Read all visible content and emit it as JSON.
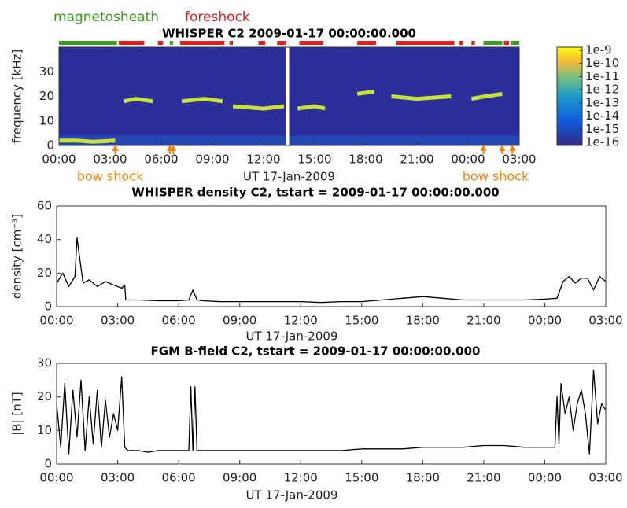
{
  "chart_data": [
    {
      "type": "spectrogram",
      "title": "WHISPER C2 2009-01-17 00:00:00.000",
      "ylabel": "frequency [kHz]",
      "xlabel": "UT 17-Jan-2009",
      "xlim": [
        0,
        27
      ],
      "xticks": [
        {
          "value": 0,
          "label": "00:00"
        },
        {
          "value": 3,
          "label": "03:00"
        },
        {
          "value": 6,
          "label": "06:00"
        },
        {
          "value": 9,
          "label": "09:00"
        },
        {
          "value": 12,
          "label": "12:00"
        },
        {
          "value": 15,
          "label": "15:00"
        },
        {
          "value": 18,
          "label": "18:00"
        },
        {
          "value": 21,
          "label": "21:00"
        },
        {
          "value": 24,
          "label": "00:00"
        },
        {
          "value": 27,
          "label": "03:00"
        }
      ],
      "ylim": [
        0,
        40
      ],
      "yticks": [
        0,
        10,
        20,
        30
      ],
      "clim": [
        1e-16,
        1e-09
      ],
      "cticks": [
        1e-09,
        1e-10,
        1e-11,
        1e-12,
        1e-13,
        1e-14,
        1e-15,
        1e-16
      ],
      "gaps": [
        [
          13.3,
          13.5
        ]
      ],
      "x": [
        0,
        1,
        2,
        3.3,
        3.5,
        3.8,
        4.5,
        5.5,
        5.8,
        7.2,
        8.5,
        9.6,
        10.0,
        10.2,
        12,
        13.2,
        13.6,
        14,
        15,
        15.6,
        16,
        17.5,
        18.5,
        19,
        19.5,
        21,
        23,
        23.5,
        24.2,
        25,
        26
      ],
      "series": [
        {
          "color": "#c8e03a",
          "values": [
            2,
            2,
            1.5,
            2,
            null,
            18,
            19,
            18,
            null,
            18,
            19,
            18,
            null,
            16,
            15,
            16,
            null,
            15,
            16,
            15,
            null,
            21,
            22,
            null,
            20,
            19,
            20,
            null,
            19,
            20,
            21
          ]
        }
      ],
      "intervals": [
        {
          "name": "magnetosheath",
          "color": "#3a9b1e",
          "spans": [
            [
              0,
              3.4
            ],
            [
              6.5,
              6.7
            ],
            [
              24.9,
              26.0
            ],
            [
              26.5,
              27
            ]
          ]
        },
        {
          "name": "foreshock",
          "color": "#e01c1c",
          "spans": [
            [
              3.5,
              5.0
            ],
            [
              5.8,
              6.1
            ],
            [
              7.1,
              9.7
            ],
            [
              10,
              10.2
            ],
            [
              11.7,
              12.1
            ],
            [
              12.8,
              13.3
            ],
            [
              14.1,
              15.5
            ],
            [
              17.5,
              18.6
            ],
            [
              19.8,
              23.2
            ],
            [
              23.5,
              23.7
            ],
            [
              24.2,
              24.4
            ],
            [
              26.1,
              26.4
            ]
          ]
        }
      ],
      "bow_shock": {
        "label": "bow shock",
        "color": "#f5820f",
        "times": [
          3.3,
          6.5,
          6.7,
          24.9,
          26.0,
          26.6
        ]
      }
    },
    {
      "type": "line",
      "title": "WHISPER density C2, tstart = 2009-01-17 00:00:00.000",
      "ylabel": "density [cm⁻³]",
      "xlabel": "UT 17-Jan-2009",
      "xlim": [
        0,
        27
      ],
      "xticks": [
        {
          "value": 0,
          "label": "00:00"
        },
        {
          "value": 3,
          "label": "03:00"
        },
        {
          "value": 6,
          "label": "06:00"
        },
        {
          "value": 9,
          "label": "09:00"
        },
        {
          "value": 12,
          "label": "12:00"
        },
        {
          "value": 15,
          "label": "15:00"
        },
        {
          "value": 18,
          "label": "18:00"
        },
        {
          "value": 21,
          "label": "21:00"
        },
        {
          "value": 24,
          "label": "00:00"
        },
        {
          "value": 27,
          "label": "03:00"
        }
      ],
      "ylim": [
        0,
        60
      ],
      "yticks": [
        0,
        20,
        40,
        60
      ],
      "x": [
        0,
        0.3,
        0.6,
        0.9,
        1.0,
        1.3,
        1.6,
        2.0,
        2.4,
        2.8,
        3.2,
        3.35,
        3.4,
        4,
        5,
        6,
        6.5,
        6.7,
        6.9,
        7.2,
        8,
        9,
        10,
        11,
        12,
        13,
        14,
        15,
        16,
        17,
        18,
        19,
        20,
        21,
        22,
        23,
        24,
        24.6,
        24.9,
        25.2,
        25.5,
        25.8,
        26.1,
        26.4,
        26.7,
        27
      ],
      "series": [
        {
          "color": "#000000",
          "values": [
            14,
            20,
            12,
            18,
            41,
            14,
            16,
            12,
            15,
            13,
            11,
            13,
            4,
            4,
            3.5,
            3.5,
            4,
            10,
            4,
            3.5,
            3,
            3,
            3,
            3,
            3,
            2.5,
            3,
            3,
            4,
            5,
            6,
            5,
            4,
            4,
            4,
            4,
            4.5,
            5,
            15,
            18,
            14,
            17,
            17,
            10,
            18,
            15
          ]
        }
      ]
    },
    {
      "type": "line",
      "title": "FGM B-field C2, tstart = 2009-01-17 00:00:00.000",
      "ylabel": "|B| [nT]",
      "xlabel": "UT 17-Jan-2009",
      "xlim": [
        0,
        27
      ],
      "xticks": [
        {
          "value": 0,
          "label": "00:00"
        },
        {
          "value": 3,
          "label": "03:00"
        },
        {
          "value": 6,
          "label": "06:00"
        },
        {
          "value": 9,
          "label": "09:00"
        },
        {
          "value": 12,
          "label": "12:00"
        },
        {
          "value": 15,
          "label": "15:00"
        },
        {
          "value": 18,
          "label": "18:00"
        },
        {
          "value": 21,
          "label": "21:00"
        },
        {
          "value": 24,
          "label": "00:00"
        },
        {
          "value": 27,
          "label": "03:00"
        }
      ],
      "ylim": [
        0,
        30
      ],
      "yticks": [
        0,
        10,
        20,
        30
      ],
      "x": [
        0,
        0.2,
        0.4,
        0.6,
        0.8,
        1.0,
        1.2,
        1.4,
        1.6,
        1.8,
        2.0,
        2.2,
        2.4,
        2.6,
        2.8,
        3.0,
        3.2,
        3.35,
        3.5,
        4,
        4.5,
        5,
        5.5,
        6,
        6.5,
        6.6,
        6.7,
        6.8,
        6.9,
        7,
        8,
        9,
        10,
        11,
        12,
        13,
        14,
        15,
        16,
        17,
        18,
        19,
        20,
        21,
        22,
        23,
        24,
        24.5,
        24.6,
        24.7,
        24.8,
        25,
        25.2,
        25.4,
        25.6,
        25.8,
        26,
        26.2,
        26.4,
        26.6,
        26.8,
        27
      ],
      "series": [
        {
          "color": "#000000",
          "values": [
            18,
            5,
            24,
            3,
            22,
            8,
            25,
            4,
            20,
            6,
            22,
            5,
            19,
            8,
            15,
            10,
            26,
            5,
            4,
            4,
            3.5,
            4,
            4,
            4,
            4,
            23,
            4,
            23,
            4,
            4,
            4,
            4,
            4,
            4,
            4,
            4,
            4,
            4.5,
            4.5,
            4.5,
            5,
            5,
            5,
            5.5,
            5.5,
            5,
            5,
            5,
            20,
            6,
            24,
            15,
            20,
            10,
            18,
            22,
            15,
            3,
            28,
            12,
            18,
            16
          ]
        }
      ]
    }
  ]
}
